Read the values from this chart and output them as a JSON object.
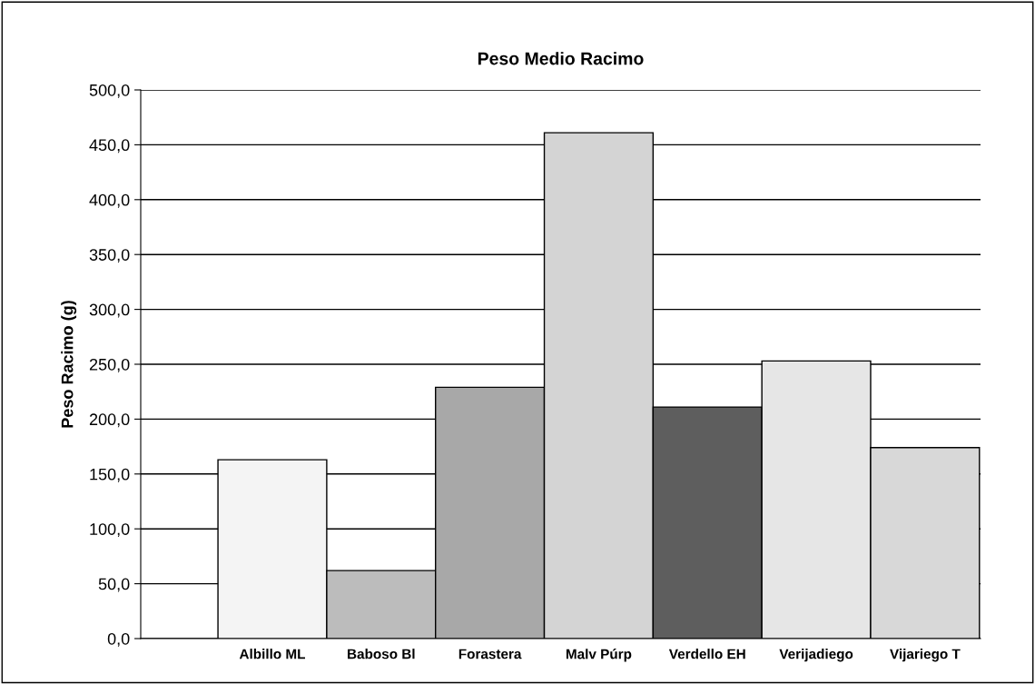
{
  "chart_data": {
    "type": "bar",
    "title": "Peso Medio Racimo",
    "ylabel": "Peso Racimo (g)",
    "categories": [
      "Albillo ML",
      "Baboso Bl",
      "Forastera",
      "Malv Púrp",
      "Verdello EH",
      "Verijadiego",
      "Vijariego T"
    ],
    "values": [
      163,
      62,
      229,
      461,
      211,
      253,
      174
    ],
    "colors": [
      "#f4f4f4",
      "#bcbcbc",
      "#a8a8a8",
      "#d4d4d4",
      "#5e5e5e",
      "#e6e6e6",
      "#d8d8d8"
    ],
    "ylim": [
      0,
      500
    ],
    "yticks": [
      {
        "value": 0,
        "label": "0,0"
      },
      {
        "value": 50,
        "label": "50,0"
      },
      {
        "value": 100,
        "label": "100,0"
      },
      {
        "value": 150,
        "label": "150,0"
      },
      {
        "value": 200,
        "label": "200,0"
      },
      {
        "value": 250,
        "label": "250,0"
      },
      {
        "value": 300,
        "label": "300,0"
      },
      {
        "value": 350,
        "label": "350,0"
      },
      {
        "value": 400,
        "label": "400,0"
      },
      {
        "value": 450,
        "label": "450,0"
      },
      {
        "value": 500,
        "label": "500,0"
      }
    ],
    "grid": "y",
    "legend": false
  }
}
